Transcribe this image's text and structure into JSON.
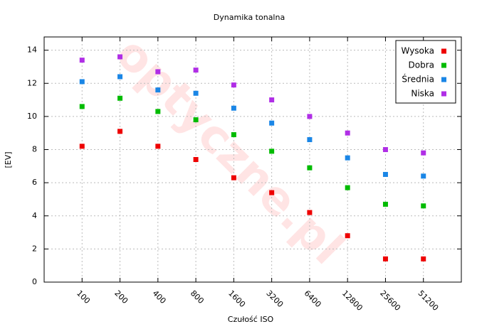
{
  "chart_data": {
    "type": "scatter",
    "title": "Dynamika tonalna",
    "x_label": "Czułość ISO",
    "y_label": "[EV]",
    "watermark": "optyczne.pl",
    "categories": [
      "100",
      "200",
      "400",
      "800",
      "1600",
      "3200",
      "6400",
      "12800",
      "25600",
      "51200"
    ],
    "series": [
      {
        "name": "Wysoka",
        "color": "#ee0000",
        "values": [
          8.2,
          9.1,
          8.2,
          7.4,
          6.3,
          5.4,
          4.2,
          2.8,
          1.4,
          1.4
        ]
      },
      {
        "name": "Dobra",
        "color": "#00bb00",
        "values": [
          10.6,
          11.1,
          10.3,
          9.8,
          8.9,
          7.9,
          6.9,
          5.7,
          4.7,
          4.6
        ]
      },
      {
        "name": "Średnia",
        "color": "#1a86e6",
        "values": [
          12.1,
          12.4,
          11.6,
          11.4,
          10.5,
          9.6,
          8.6,
          7.5,
          6.5,
          6.4
        ]
      },
      {
        "name": "Niska",
        "color": "#b02ee6",
        "values": [
          13.4,
          13.6,
          12.7,
          12.8,
          11.9,
          11.0,
          10.0,
          9.0,
          8.0,
          7.8
        ]
      }
    ],
    "ylim": [
      0,
      14.8
    ],
    "yticks": [
      0,
      2,
      4,
      6,
      8,
      10,
      12,
      14
    ],
    "grid": true,
    "legend": "top-right"
  }
}
